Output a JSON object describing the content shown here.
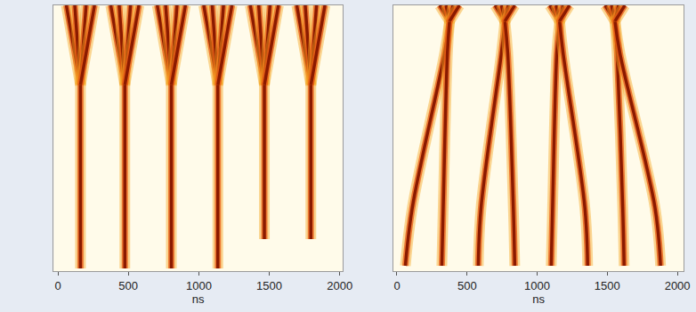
{
  "chart_data": [
    {
      "type": "line",
      "x_label": "ns",
      "xlim": [
        -30,
        2020
      ],
      "xticks": [
        0,
        500,
        1000,
        1500,
        2000
      ],
      "ylim": [
        0,
        100
      ],
      "tick_labels": "x",
      "grid": false,
      "color": "#8b1a00",
      "series": [
        {
          "x": [
            160,
            160
          ],
          "values": [
            70,
            1
          ]
        },
        {
          "x": [
            60,
            110,
            160
          ],
          "values": [
            100,
            85,
            70
          ]
        },
        {
          "x": [
            120,
            140,
            160
          ],
          "values": [
            100,
            85,
            70
          ]
        },
        {
          "x": [
            200,
            180,
            160
          ],
          "values": [
            100,
            85,
            70
          ]
        },
        {
          "x": [
            260,
            210,
            160
          ],
          "values": [
            100,
            85,
            70
          ]
        },
        {
          "x": [
            475,
            475
          ],
          "values": [
            70,
            1
          ]
        },
        {
          "x": [
            375,
            425,
            475
          ],
          "values": [
            100,
            85,
            70
          ]
        },
        {
          "x": [
            435,
            455,
            475
          ],
          "values": [
            100,
            85,
            70
          ]
        },
        {
          "x": [
            515,
            495,
            475
          ],
          "values": [
            100,
            85,
            70
          ]
        },
        {
          "x": [
            575,
            525,
            475
          ],
          "values": [
            100,
            85,
            70
          ]
        },
        {
          "x": [
            805,
            805
          ],
          "values": [
            70,
            1
          ]
        },
        {
          "x": [
            705,
            755,
            805
          ],
          "values": [
            100,
            85,
            70
          ]
        },
        {
          "x": [
            765,
            785,
            805
          ],
          "values": [
            100,
            85,
            70
          ]
        },
        {
          "x": [
            845,
            825,
            805
          ],
          "values": [
            100,
            85,
            70
          ]
        },
        {
          "x": [
            905,
            855,
            805
          ],
          "values": [
            100,
            85,
            70
          ]
        },
        {
          "x": [
            1135,
            1135
          ],
          "values": [
            70,
            1
          ]
        },
        {
          "x": [
            1035,
            1085,
            1135
          ],
          "values": [
            100,
            85,
            70
          ]
        },
        {
          "x": [
            1095,
            1115,
            1135
          ],
          "values": [
            100,
            85,
            70
          ]
        },
        {
          "x": [
            1175,
            1155,
            1135
          ],
          "values": [
            100,
            85,
            70
          ]
        },
        {
          "x": [
            1235,
            1185,
            1135
          ],
          "values": [
            100,
            85,
            70
          ]
        },
        {
          "x": [
            1465,
            1465
          ],
          "values": [
            70,
            12
          ]
        },
        {
          "x": [
            1365,
            1415,
            1465
          ],
          "values": [
            100,
            85,
            70
          ]
        },
        {
          "x": [
            1425,
            1445,
            1465
          ],
          "values": [
            100,
            85,
            70
          ]
        },
        {
          "x": [
            1505,
            1485,
            1465
          ],
          "values": [
            100,
            85,
            70
          ]
        },
        {
          "x": [
            1565,
            1515,
            1465
          ],
          "values": [
            100,
            85,
            70
          ]
        },
        {
          "x": [
            1795,
            1795
          ],
          "values": [
            70,
            12
          ]
        },
        {
          "x": [
            1695,
            1745,
            1795
          ],
          "values": [
            100,
            85,
            70
          ]
        },
        {
          "x": [
            1755,
            1775,
            1795
          ],
          "values": [
            100,
            85,
            70
          ]
        },
        {
          "x": [
            1835,
            1815,
            1795
          ],
          "values": [
            100,
            85,
            70
          ]
        },
        {
          "x": [
            1895,
            1845,
            1795
          ],
          "values": [
            100,
            85,
            70
          ]
        }
      ]
    },
    {
      "type": "line",
      "x_label": "ns",
      "xlim": [
        -25,
        2045
      ],
      "xticks": [
        0,
        500,
        1000,
        1500,
        2000
      ],
      "ylim": [
        0,
        100
      ],
      "tick_labels": "x",
      "grid": false,
      "color": "#8b1a00",
      "series": [
        {
          "x": [
            60,
            110,
            340,
            375
          ],
          "values": [
            2,
            24,
            82,
            94
          ]
        },
        {
          "x": [
            320,
            330,
            360,
            375
          ],
          "values": [
            2,
            24,
            82,
            94
          ]
        },
        {
          "x": [
            305,
            375
          ],
          "values": [
            100,
            94
          ]
        },
        {
          "x": [
            350,
            375
          ],
          "values": [
            100,
            94
          ]
        },
        {
          "x": [
            400,
            375
          ],
          "values": [
            100,
            94
          ]
        },
        {
          "x": [
            445,
            375
          ],
          "values": [
            100,
            94
          ]
        },
        {
          "x": [
            580,
            600,
            745,
            770
          ],
          "values": [
            2,
            24,
            82,
            94
          ]
        },
        {
          "x": [
            840,
            830,
            790,
            770
          ],
          "values": [
            2,
            24,
            82,
            94
          ]
        },
        {
          "x": [
            700,
            770
          ],
          "values": [
            100,
            94
          ]
        },
        {
          "x": [
            745,
            770
          ],
          "values": [
            100,
            94
          ]
        },
        {
          "x": [
            795,
            770
          ],
          "values": [
            100,
            94
          ]
        },
        {
          "x": [
            840,
            770
          ],
          "values": [
            100,
            94
          ]
        },
        {
          "x": [
            1100,
            1110,
            1140,
            1160
          ],
          "values": [
            2,
            24,
            82,
            94
          ]
        },
        {
          "x": [
            1360,
            1340,
            1185,
            1160
          ],
          "values": [
            2,
            24,
            82,
            94
          ]
        },
        {
          "x": [
            1090,
            1160
          ],
          "values": [
            100,
            94
          ]
        },
        {
          "x": [
            1135,
            1160
          ],
          "values": [
            100,
            94
          ]
        },
        {
          "x": [
            1185,
            1160
          ],
          "values": [
            100,
            94
          ]
        },
        {
          "x": [
            1230,
            1160
          ],
          "values": [
            100,
            94
          ]
        },
        {
          "x": [
            1620,
            1610,
            1570,
            1555
          ],
          "values": [
            2,
            24,
            82,
            94
          ]
        },
        {
          "x": [
            1880,
            1840,
            1590,
            1555
          ],
          "values": [
            2,
            24,
            82,
            94
          ]
        },
        {
          "x": [
            1485,
            1555
          ],
          "values": [
            100,
            94
          ]
        },
        {
          "x": [
            1530,
            1555
          ],
          "values": [
            100,
            94
          ]
        },
        {
          "x": [
            1580,
            1555
          ],
          "values": [
            100,
            94
          ]
        },
        {
          "x": [
            1625,
            1555
          ],
          "values": [
            100,
            94
          ]
        }
      ]
    }
  ]
}
